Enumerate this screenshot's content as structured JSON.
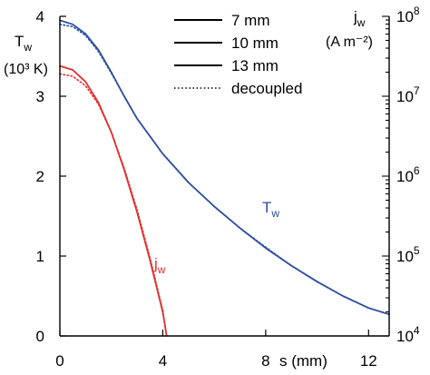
{
  "chart_data": {
    "type": "line",
    "x_axis": {
      "label": "s (mm)",
      "range": [
        0,
        12.8
      ],
      "ticks": [
        0,
        4,
        8,
        12
      ]
    },
    "y_left": {
      "label_main": "T",
      "label_sub": "w",
      "unit": "(10³ K)",
      "range": [
        0,
        4
      ],
      "ticks": [
        0,
        1,
        2,
        3,
        4
      ]
    },
    "y_right": {
      "label_main": "j",
      "label_sub": "w",
      "unit": "(A m⁻²)",
      "scale": "log",
      "range": [
        10000,
        100000000
      ],
      "tick_labels": [
        {
          "base": "10",
          "exp": "4",
          "value": 10000
        },
        {
          "base": "10",
          "exp": "5",
          "value": 100000
        },
        {
          "base": "10",
          "exp": "6",
          "value": 1000000
        },
        {
          "base": "10",
          "exp": "7",
          "value": 10000000
        },
        {
          "base": "10",
          "exp": "8",
          "value": 100000000
        }
      ]
    },
    "legend": {
      "placement": "top-center",
      "entries": [
        {
          "label": "7 mm",
          "style": "solid"
        },
        {
          "label": "10 mm",
          "style": "solid"
        },
        {
          "label": "13 mm",
          "style": "solid"
        },
        {
          "label": "decoupled",
          "style": "dotted"
        }
      ]
    },
    "annotations": {
      "tw": {
        "main": "T",
        "sub": "w",
        "color": "#2b4ea0"
      },
      "jw": {
        "main": "j",
        "sub": "w",
        "color": "#e03030"
      }
    },
    "series": [
      {
        "name": "T_w",
        "axis": "left",
        "style": "solid",
        "color": "#2b4ea0",
        "points": [
          [
            0,
            3.95
          ],
          [
            0.5,
            3.9
          ],
          [
            1.0,
            3.78
          ],
          [
            1.5,
            3.58
          ],
          [
            2.0,
            3.3
          ],
          [
            2.5,
            3.0
          ],
          [
            3.0,
            2.72
          ],
          [
            4.0,
            2.28
          ],
          [
            5.0,
            1.92
          ],
          [
            6.0,
            1.62
          ],
          [
            7.0,
            1.35
          ],
          [
            8.0,
            1.1
          ],
          [
            9.0,
            0.88
          ],
          [
            10.0,
            0.68
          ],
          [
            11.0,
            0.5
          ],
          [
            12.0,
            0.35
          ],
          [
            12.8,
            0.27
          ]
        ]
      },
      {
        "name": "T_w decoupled",
        "axis": "left",
        "style": "dotted",
        "color": "#2b4ea0",
        "points": [
          [
            0,
            3.9
          ],
          [
            0.5,
            3.87
          ],
          [
            1.0,
            3.76
          ],
          [
            1.5,
            3.56
          ],
          [
            2.0,
            3.29
          ],
          [
            2.5,
            3.0
          ],
          [
            3.0,
            2.72
          ],
          [
            4.0,
            2.28
          ],
          [
            5.0,
            1.92
          ],
          [
            6.0,
            1.62
          ],
          [
            7.0,
            1.35
          ],
          [
            8.0,
            1.11
          ],
          [
            9.0,
            0.88
          ],
          [
            10.0,
            0.68
          ],
          [
            11.0,
            0.5
          ],
          [
            12.0,
            0.35
          ],
          [
            12.8,
            0.27
          ]
        ]
      },
      {
        "name": "j_w",
        "axis": "left",
        "style": "solid",
        "color": "#e03030",
        "points": [
          [
            0,
            3.38
          ],
          [
            0.5,
            3.33
          ],
          [
            1.0,
            3.18
          ],
          [
            1.5,
            2.92
          ],
          [
            2.0,
            2.55
          ],
          [
            2.5,
            2.08
          ],
          [
            3.0,
            1.55
          ],
          [
            3.5,
            0.95
          ],
          [
            4.0,
            0.3
          ],
          [
            4.15,
            0.0
          ]
        ]
      },
      {
        "name": "j_w decoupled",
        "axis": "left",
        "style": "dotted",
        "color": "#e03030",
        "points": [
          [
            0,
            3.28
          ],
          [
            0.5,
            3.25
          ],
          [
            1.0,
            3.13
          ],
          [
            1.5,
            2.9
          ],
          [
            2.0,
            2.55
          ],
          [
            2.5,
            2.1
          ],
          [
            3.0,
            1.58
          ],
          [
            3.5,
            0.98
          ],
          [
            4.0,
            0.32
          ],
          [
            4.15,
            0.0
          ]
        ]
      }
    ]
  }
}
